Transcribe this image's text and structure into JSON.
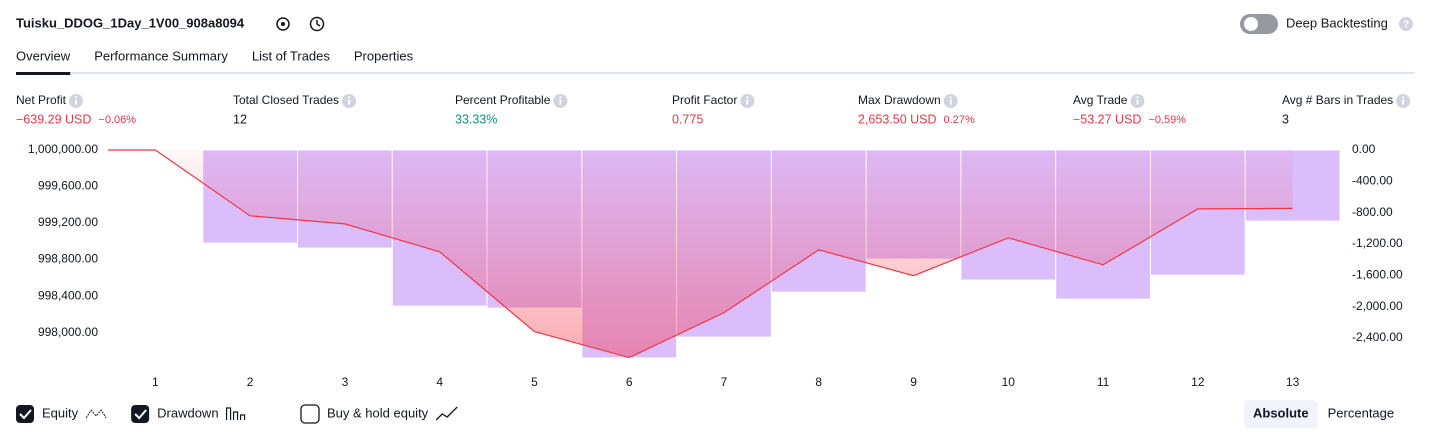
{
  "header": {
    "strategy": "Tuisku_DDOG_1Day_1V00_908a8094",
    "deep_backtesting": {
      "label": "Deep Backtesting",
      "on": false
    }
  },
  "tabs": [
    {
      "label": "Overview",
      "active": true
    },
    {
      "label": "Performance Summary",
      "active": false
    },
    {
      "label": "List of Trades",
      "active": false
    },
    {
      "label": "Properties",
      "active": false
    }
  ],
  "metrics": [
    {
      "label": "Net Profit",
      "value": "−639.29 USD",
      "pct": "−0.06%",
      "tone": "negative"
    },
    {
      "label": "Total Closed Trades",
      "value": "12",
      "tone": "neutral"
    },
    {
      "label": "Percent Profitable",
      "value": "33.33%",
      "tone": "positive"
    },
    {
      "label": "Profit Factor",
      "value": "0.775",
      "tone": "negative"
    },
    {
      "label": "Max Drawdown",
      "value": "2,653.50 USD",
      "pct": "0.27%",
      "tone": "negative"
    },
    {
      "label": "Avg Trade",
      "value": "−53.27 USD",
      "pct": "−0.59%",
      "tone": "negative"
    },
    {
      "label": "Avg # Bars in Trades",
      "value": "3",
      "tone": "neutral"
    }
  ],
  "chart_data": {
    "type": "combo",
    "categories": [
      "1",
      "2",
      "3",
      "4",
      "5",
      "6",
      "7",
      "8",
      "9",
      "10",
      "11",
      "12",
      "13"
    ],
    "series": [
      {
        "name": "Equity",
        "kind": "line",
        "color": "#f23645",
        "visible": true,
        "values": [
          1000000,
          999279,
          999191,
          998885,
          998011,
          997727,
          998219,
          998907,
          998623,
          999038,
          998743,
          999355,
          999360.71
        ]
      },
      {
        "name": "Drawdown",
        "kind": "bar",
        "color": "#dcbdfb",
        "visible": true,
        "axis": "y2",
        "values": [
          0,
          -1188,
          -1252,
          -1992,
          -2018,
          -2653.5,
          -2388,
          -1814,
          -1392,
          -1660,
          -1903,
          -1597,
          -907
        ]
      }
    ],
    "ylim": [
      997700,
      1000000
    ],
    "yticks": [
      {
        "value": 1000000,
        "label": "1,000,000.00"
      },
      {
        "value": 999600,
        "label": "999,600.00"
      },
      {
        "value": 999200,
        "label": "999,200.00"
      },
      {
        "value": 998800,
        "label": "998,800.00"
      },
      {
        "value": 998400,
        "label": "998,400.00"
      },
      {
        "value": 998000,
        "label": "998,000.00"
      }
    ],
    "y2lim": [
      -2680,
      0
    ],
    "y2ticks": [
      {
        "value": 0,
        "label": "0.00"
      },
      {
        "value": -400,
        "label": "-400.00"
      },
      {
        "value": -800,
        "label": "-800.00"
      },
      {
        "value": -1200,
        "label": "-1,200.00"
      },
      {
        "value": -1600,
        "label": "-1,600.00"
      },
      {
        "value": -2000,
        "label": "-2,000.00"
      },
      {
        "value": -2400,
        "label": "-2,400.00"
      }
    ]
  },
  "extra_legend": {
    "label": "Buy & hold equity",
    "checked": false
  },
  "scale_buttons": [
    {
      "label": "Absolute",
      "active": true
    },
    {
      "label": "Percentage",
      "active": false
    }
  ]
}
